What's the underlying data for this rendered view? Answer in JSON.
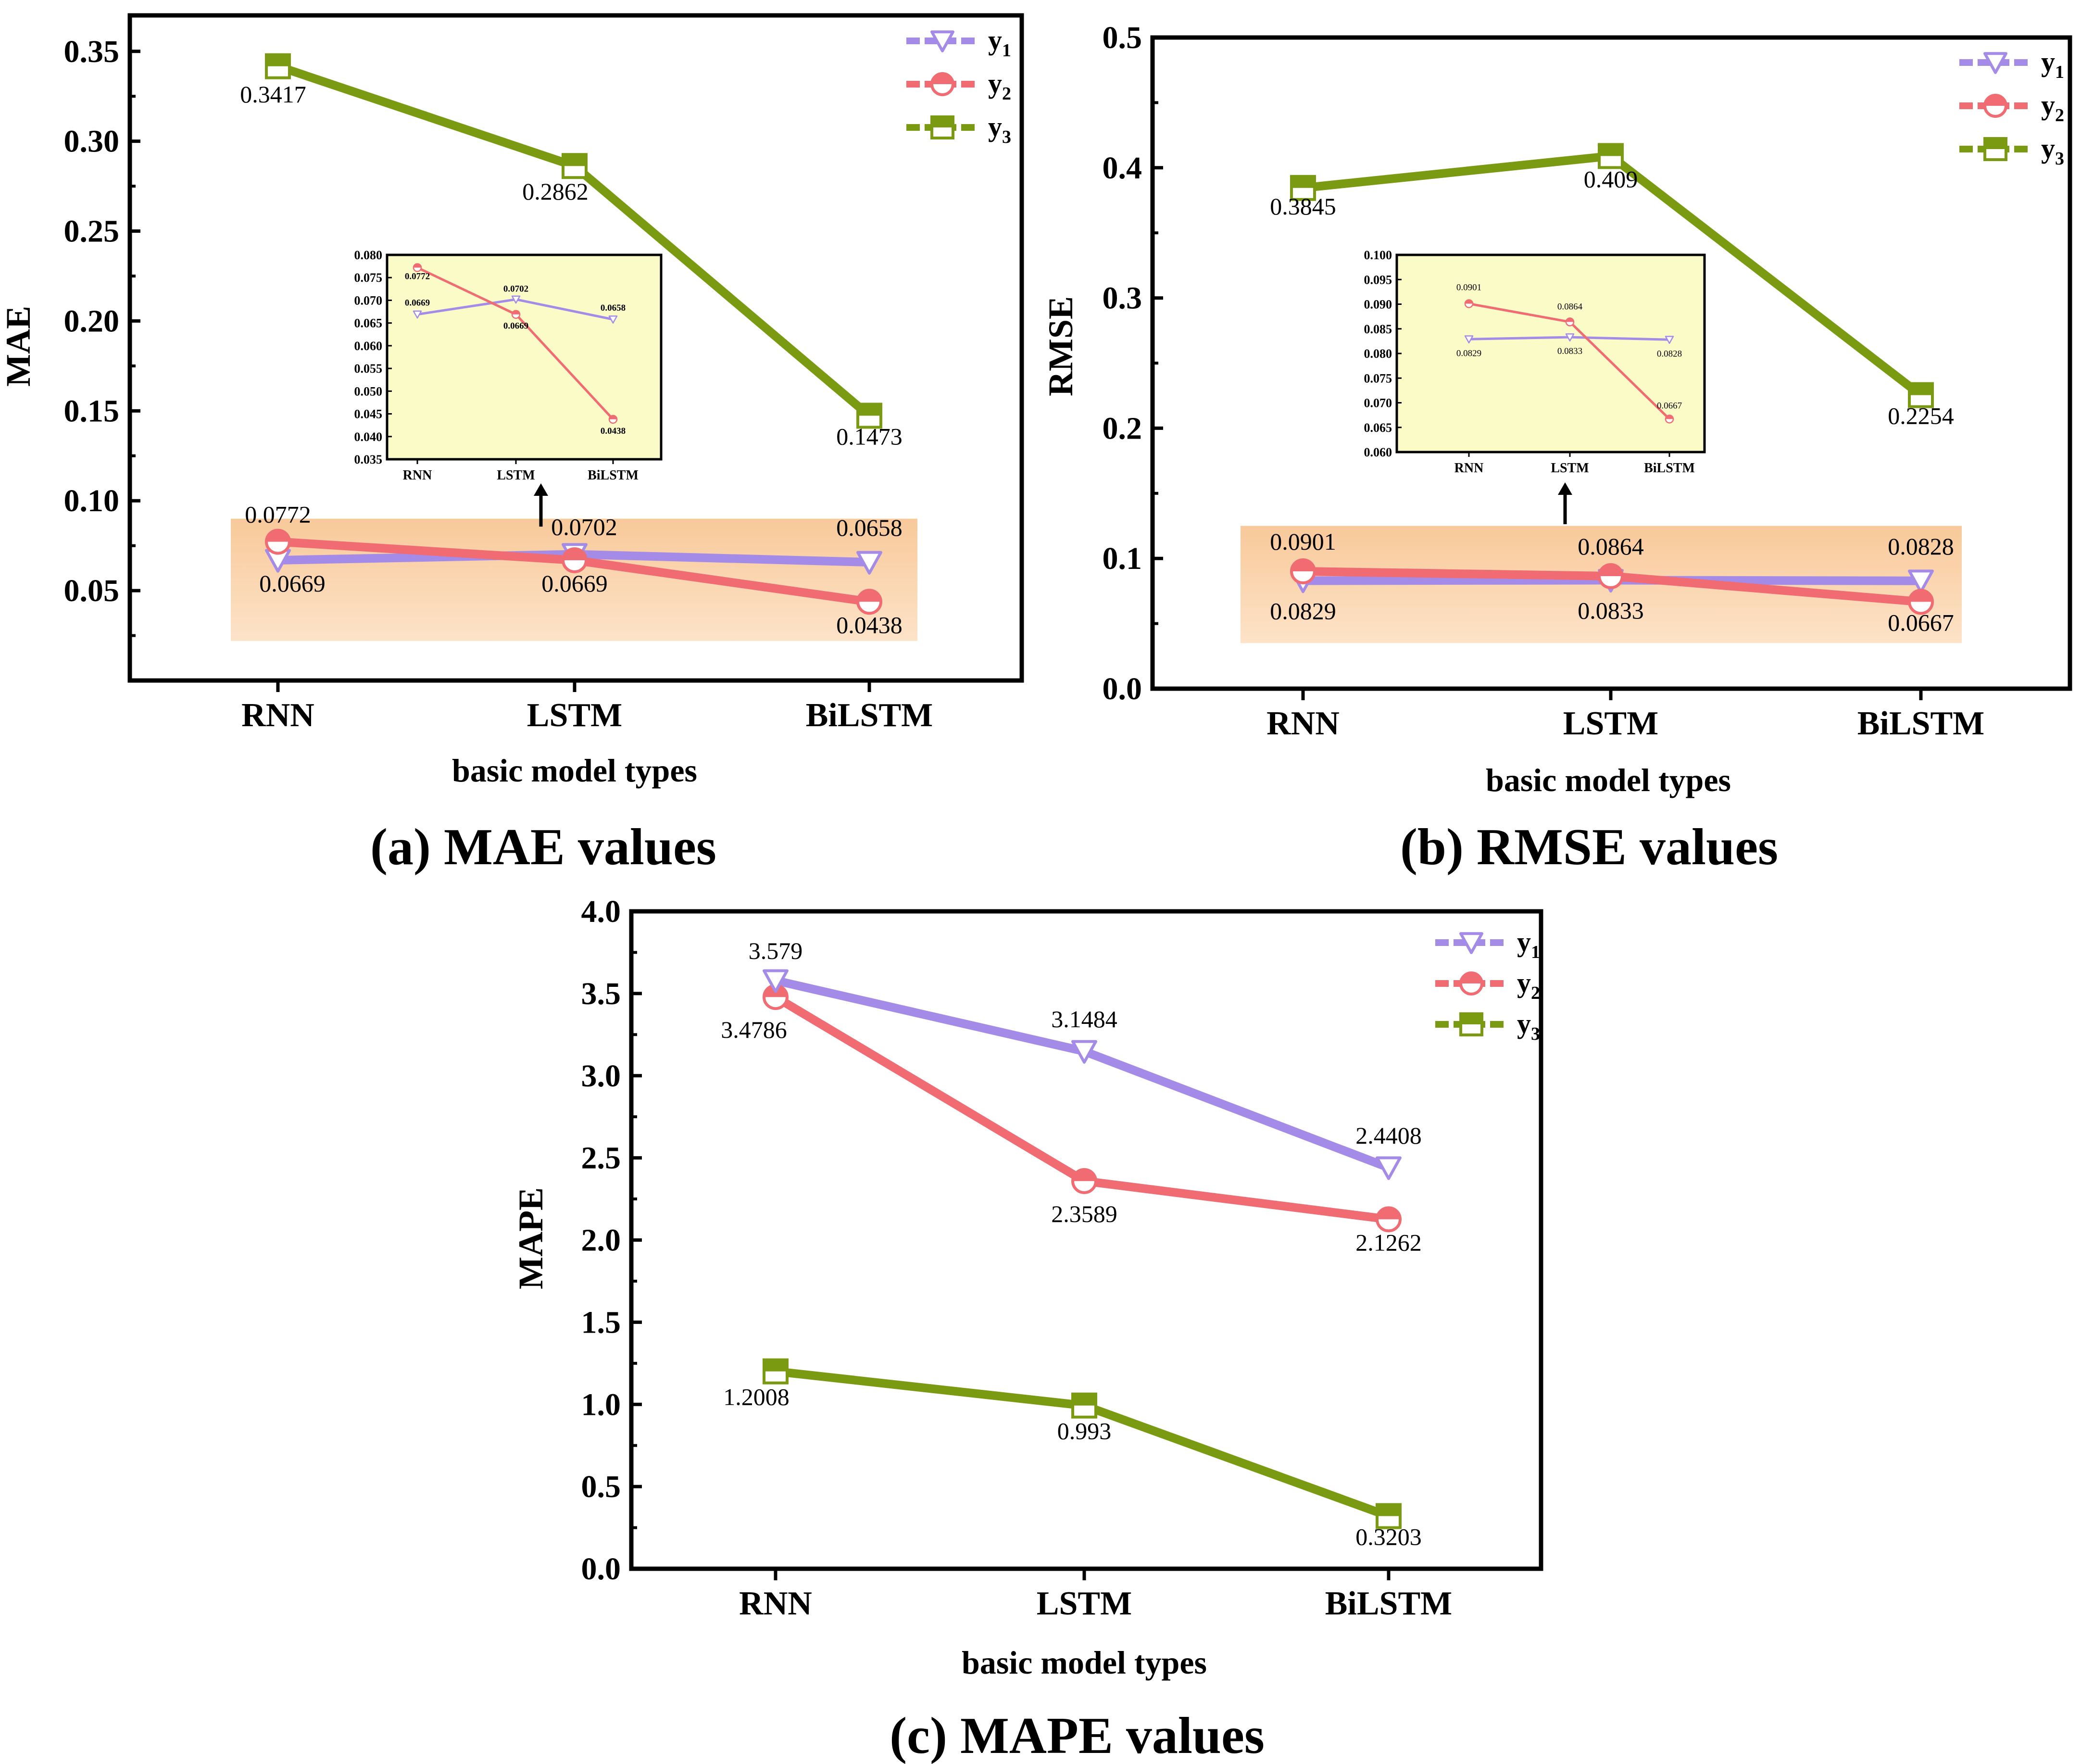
{
  "colors": {
    "y1": "#a58be8",
    "y2": "#f06b72",
    "y3": "#7a9a12",
    "inset_bg": "#fbfbc8",
    "band_top": "#f8c99a",
    "band_bottom": "#fde3c8"
  },
  "legend": [
    {
      "key": "y1",
      "base": "y",
      "sub": "1",
      "marker": "triangle-down-icon"
    },
    {
      "key": "y2",
      "base": "y",
      "sub": "2",
      "marker": "half-circle-icon"
    },
    {
      "key": "y3",
      "base": "y",
      "sub": "3",
      "marker": "half-square-icon"
    }
  ],
  "chart_data": [
    {
      "id": "mae",
      "type": "line",
      "caption": "(a) MAE values",
      "xlabel": "basic model types",
      "ylabel": "MAE",
      "categories": [
        "RNN",
        "LSTM",
        "BiLSTM"
      ],
      "ylim": [
        0.0,
        0.37
      ],
      "yticks": [
        "0.05",
        "0.10",
        "0.15",
        "0.20",
        "0.25",
        "0.30",
        "0.35"
      ],
      "series": [
        {
          "name": "y1",
          "values": [
            0.0669,
            0.0702,
            0.0658
          ],
          "labels": [
            "0.0669",
            "0.0702",
            "0.0658"
          ]
        },
        {
          "name": "y2",
          "values": [
            0.0772,
            0.0669,
            0.0438
          ],
          "labels": [
            "0.0772",
            "0.0669",
            "0.0438"
          ]
        },
        {
          "name": "y3",
          "values": [
            0.3417,
            0.2862,
            0.1473
          ],
          "labels": [
            "0.3417",
            "0.2862",
            "0.1473"
          ]
        }
      ],
      "inset": {
        "ylim": [
          0.035,
          0.08
        ],
        "yticks": [
          "0.035",
          "0.040",
          "0.045",
          "0.050",
          "0.055",
          "0.060",
          "0.065",
          "0.070",
          "0.075",
          "0.080"
        ],
        "series": [
          {
            "name": "y1",
            "values": [
              0.0669,
              0.0702,
              0.0658
            ],
            "labels": [
              "0.0669",
              "0.0702",
              "0.0658"
            ]
          },
          {
            "name": "y2",
            "values": [
              0.0772,
              0.0669,
              0.0438
            ],
            "labels": [
              "0.0772",
              "0.0669",
              "0.0438"
            ]
          }
        ]
      }
    },
    {
      "id": "rmse",
      "type": "line",
      "caption": "(b) RMSE values",
      "xlabel": "basic model types",
      "ylabel": "RMSE",
      "categories": [
        "RNN",
        "LSTM",
        "BiLSTM"
      ],
      "ylim": [
        0.0,
        0.5
      ],
      "yticks": [
        "0.0",
        "0.1",
        "0.2",
        "0.3",
        "0.4",
        "0.5"
      ],
      "series": [
        {
          "name": "y1",
          "values": [
            0.0829,
            0.0833,
            0.0828
          ],
          "labels": [
            "0.0829",
            "0.0833",
            "0.0828"
          ]
        },
        {
          "name": "y2",
          "values": [
            0.0901,
            0.0864,
            0.0667
          ],
          "labels": [
            "0.0901",
            "0.0864",
            "0.0667"
          ]
        },
        {
          "name": "y3",
          "values": [
            0.3845,
            0.409,
            0.2254
          ],
          "labels": [
            "0.3845",
            "0.409",
            "0.2254"
          ]
        }
      ],
      "inset": {
        "ylim": [
          0.06,
          0.1
        ],
        "yticks": [
          "0.060",
          "0.065",
          "0.070",
          "0.075",
          "0.080",
          "0.085",
          "0.090",
          "0.095",
          "0.100"
        ],
        "series": [
          {
            "name": "y1",
            "values": [
              0.0829,
              0.0833,
              0.0828
            ],
            "labels": [
              "0.0829",
              "0.0833",
              "0.0828"
            ]
          },
          {
            "name": "y2",
            "values": [
              0.0901,
              0.0864,
              0.0667
            ],
            "labels": [
              "0.0901",
              "0.0864",
              "0.0667"
            ]
          }
        ]
      }
    },
    {
      "id": "mape",
      "type": "line",
      "caption": "(c) MAPE values",
      "xlabel": "basic model types",
      "ylabel": "MAPE",
      "categories": [
        "RNN",
        "LSTM",
        "BiLSTM"
      ],
      "ylim": [
        0.0,
        4.0
      ],
      "yticks": [
        "0.0",
        "0.5",
        "1.0",
        "1.5",
        "2.0",
        "2.5",
        "3.0",
        "3.5",
        "4.0"
      ],
      "series": [
        {
          "name": "y1",
          "values": [
            3.579,
            3.1484,
            2.4408
          ],
          "labels": [
            "3.579",
            "3.1484",
            "2.4408"
          ]
        },
        {
          "name": "y2",
          "values": [
            3.4786,
            2.3589,
            2.1262
          ],
          "labels": [
            "3.4786",
            "2.3589",
            "2.1262"
          ]
        },
        {
          "name": "y3",
          "values": [
            1.2008,
            0.993,
            0.3203
          ],
          "labels": [
            "1.2008",
            "0.993",
            "0.3203"
          ]
        }
      ]
    }
  ]
}
